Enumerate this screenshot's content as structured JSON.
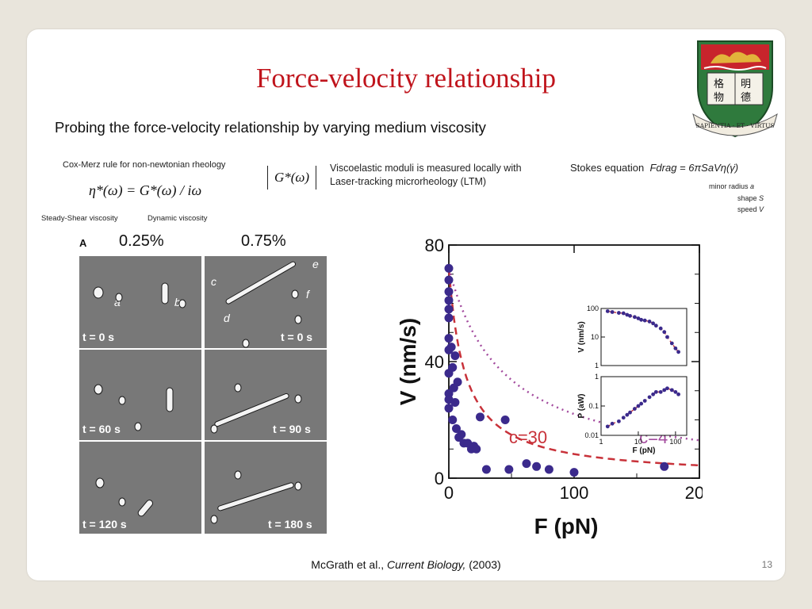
{
  "slide": {
    "title": "Force-velocity relationship",
    "subtitle": "Probing the force-velocity relationship by varying medium viscosity",
    "crest_motto": "SAPIENTIA · ET · VIRTUS",
    "crest_chars": [
      "格",
      "明",
      "物",
      "德"
    ],
    "cox_merz": {
      "title": "Cox-Merz rule for non-newtonian rheology",
      "equation": "η*(ω) = G*(ω) / iω",
      "left_label": "Steady-Shear viscosity",
      "right_label": "Dynamic viscosity"
    },
    "modulus": {
      "symbol": "G*(ω)",
      "description_line1": "Viscoelastic moduli is measured locally with",
      "description_line2": "Laser-tracking microrheology (LTM)"
    },
    "stokes": {
      "label": "Stokes  equation",
      "equation": "Fdrag = 6πSaVη(γ̇)",
      "minor_radius_label": "minor radius",
      "minor_radius_symbol": "a",
      "shape_label": "shape",
      "shape_symbol": "S",
      "speed_label": "speed",
      "speed_symbol": "V"
    },
    "micrograph": {
      "panel_letter": "A",
      "col_left_header": "0.25%",
      "col_right_header": "0.75%",
      "left_times": [
        "t = 0 s",
        "t = 60 s",
        "t = 120 s"
      ],
      "right_times": [
        "t = 0 s",
        "t = 90 s",
        "t = 180 s"
      ],
      "left_labels": [
        "a",
        "b"
      ],
      "right_labels": [
        "c",
        "d",
        "e",
        "f"
      ]
    },
    "citation_prefix": "McGrath et al., ",
    "citation_journal": "Current Biology,",
    "citation_year": " (2003)",
    "page_number": "13"
  },
  "chart_data": [
    {
      "type": "scatter",
      "xlabel": "F (pN)",
      "ylabel": "V (nm/s)",
      "xlim": [
        0,
        200
      ],
      "ylim": [
        0,
        80
      ],
      "xticks": [
        0,
        100,
        200
      ],
      "yticks": [
        0,
        40,
        80
      ],
      "annotations": [
        "c=30",
        "c=4"
      ],
      "series": [
        {
          "points": [
            [
              0,
              72
            ],
            [
              0,
              68
            ],
            [
              0,
              64
            ],
            [
              0,
              61
            ],
            [
              0,
              58
            ],
            [
              0,
              55
            ],
            [
              0,
              48
            ],
            [
              0,
              44
            ],
            [
              0,
              36
            ],
            [
              0,
              29
            ],
            [
              0,
              27
            ],
            [
              0,
              24
            ],
            [
              2,
              45
            ],
            [
              3,
              38
            ],
            [
              4,
              31
            ],
            [
              5,
              26
            ],
            [
              3,
              20
            ],
            [
              6,
              17
            ],
            [
              8,
              14
            ],
            [
              10,
              15
            ],
            [
              12,
              12
            ],
            [
              15,
              12
            ],
            [
              18,
              10
            ],
            [
              20,
              11
            ],
            [
              22,
              10
            ],
            [
              25,
              21
            ],
            [
              45,
              20
            ],
            [
              5,
              42
            ],
            [
              7,
              33
            ],
            [
              30,
              3
            ],
            [
              48,
              3
            ],
            [
              62,
              5
            ],
            [
              70,
              4
            ],
            [
              80,
              3
            ],
            [
              100,
              2
            ],
            [
              172,
              4
            ]
          ]
        }
      ],
      "curves": [
        {
          "label": "c=30",
          "color": "#c8323a",
          "style": "dashed"
        },
        {
          "label": "c=4",
          "color": "#a34b9e",
          "style": "dotted"
        }
      ],
      "colors": {
        "points": "#3b2a8c"
      }
    },
    {
      "type": "scatter",
      "ylabel": "V (nm/s)",
      "xscale": "log",
      "yscale": "log",
      "xlim": [
        1,
        200
      ],
      "ylim": [
        1,
        100
      ],
      "yticks": [
        "1",
        "10",
        "100"
      ],
      "series": [
        {
          "points": [
            [
              1.5,
              80
            ],
            [
              2,
              75
            ],
            [
              3,
              70
            ],
            [
              4,
              68
            ],
            [
              5,
              60
            ],
            [
              6,
              55
            ],
            [
              8,
              50
            ],
            [
              10,
              45
            ],
            [
              12,
              40
            ],
            [
              15,
              38
            ],
            [
              20,
              35
            ],
            [
              25,
              30
            ],
            [
              30,
              25
            ],
            [
              40,
              20
            ],
            [
              50,
              15
            ],
            [
              60,
              10
            ],
            [
              80,
              6
            ],
            [
              100,
              4
            ],
            [
              120,
              3
            ]
          ]
        }
      ]
    },
    {
      "type": "scatter",
      "xlabel": "F (pN)",
      "ylabel": "P (aW)",
      "xscale": "log",
      "yscale": "log",
      "xlim": [
        1,
        200
      ],
      "ylim": [
        0.01,
        1
      ],
      "xticks": [
        "1",
        "10",
        "100"
      ],
      "yticks": [
        "0.01",
        "0.1",
        "1"
      ],
      "series": [
        {
          "points": [
            [
              1.5,
              0.02
            ],
            [
              2,
              0.025
            ],
            [
              3,
              0.03
            ],
            [
              4,
              0.04
            ],
            [
              5,
              0.05
            ],
            [
              6,
              0.06
            ],
            [
              8,
              0.08
            ],
            [
              10,
              0.1
            ],
            [
              12,
              0.12
            ],
            [
              15,
              0.15
            ],
            [
              20,
              0.2
            ],
            [
              25,
              0.25
            ],
            [
              30,
              0.3
            ],
            [
              40,
              0.3
            ],
            [
              50,
              0.35
            ],
            [
              60,
              0.4
            ],
            [
              80,
              0.35
            ],
            [
              100,
              0.3
            ],
            [
              120,
              0.25
            ]
          ]
        }
      ]
    }
  ]
}
